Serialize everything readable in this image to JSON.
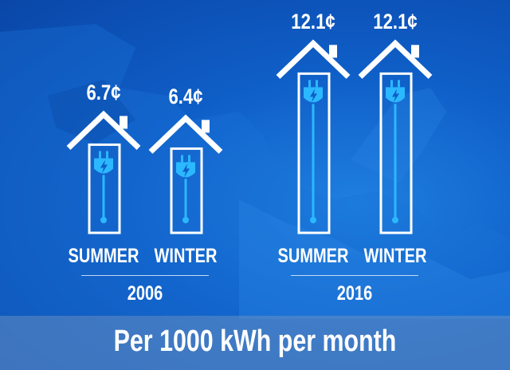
{
  "colors": {
    "background": "#0f5fc8",
    "house_stroke": "#ffffff",
    "icon": "#2bb8ff",
    "text": "#ffffff"
  },
  "footer": {
    "label": "Per 1000 kWh per month"
  },
  "chart_data": {
    "type": "bar",
    "unit": "¢",
    "groups": [
      {
        "year": "2006",
        "bars": [
          {
            "season": "SUMMER",
            "value": 6.7,
            "label": "6.7¢"
          },
          {
            "season": "WINTER",
            "value": 6.4,
            "label": "6.4¢"
          }
        ]
      },
      {
        "year": "2016",
        "bars": [
          {
            "season": "SUMMER",
            "value": 12.1,
            "label": "12.1¢"
          },
          {
            "season": "WINTER",
            "value": 12.1,
            "label": "12.1¢"
          }
        ]
      }
    ],
    "icon": "house-plug-icon"
  }
}
